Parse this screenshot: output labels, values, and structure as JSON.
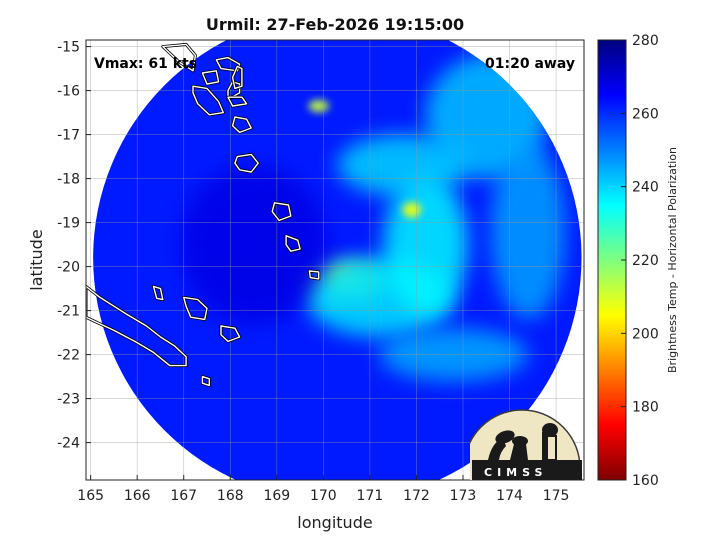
{
  "chart_data": {
    "type": "heatmap",
    "title": "Urmil: 27-Feb-2026 19:15:00",
    "xlabel": "longitude",
    "ylabel": "latitude",
    "xlim": [
      164.9,
      175.6
    ],
    "ylim": [
      -24.85,
      -14.85
    ],
    "xticks": [
      "165",
      "166",
      "167",
      "168",
      "169",
      "170",
      "171",
      "172",
      "173",
      "174",
      "175"
    ],
    "xtick_values": [
      165,
      166,
      167,
      168,
      169,
      170,
      171,
      172,
      173,
      174,
      175
    ],
    "yticks": [
      "-15",
      "-16",
      "-17",
      "-18",
      "-19",
      "-20",
      "-21",
      "-22",
      "-23",
      "-24"
    ],
    "ytick_values": [
      -15,
      -16,
      -17,
      -18,
      -19,
      -20,
      -21,
      -22,
      -23,
      -24
    ],
    "grid": true,
    "annotations": {
      "vmax": "Vmax: 61 kts",
      "away": "01:20 away"
    },
    "colorbar": {
      "label": "Brightness Temp - Horizontal Polarization",
      "range": [
        160,
        280
      ],
      "ticks": [
        "160",
        "180",
        "200",
        "220",
        "240",
        "260",
        "280"
      ],
      "tick_values": [
        160,
        180,
        200,
        220,
        240,
        260,
        280
      ],
      "colormap": "jet"
    },
    "swath": {
      "center_lon": 170.3,
      "center_lat": -19.8,
      "radius_deg": 5.55,
      "background_temp": 262
    },
    "features": [
      {
        "name": "storm-core",
        "lon": 170.35,
        "lat": -20.3,
        "rx": 0.35,
        "ry": 0.22,
        "temp": 172
      },
      {
        "name": "core-ring",
        "lon": 170.5,
        "lat": -20.35,
        "rx": 0.9,
        "ry": 0.45,
        "temp": 218
      },
      {
        "name": "inner-band",
        "lon": 171.2,
        "lat": -20.7,
        "rx": 1.6,
        "ry": 0.9,
        "temp": 238
      },
      {
        "name": "east-band",
        "lon": 172.2,
        "lat": -19.5,
        "rx": 0.9,
        "ry": 1.6,
        "temp": 236
      },
      {
        "name": "band-spot",
        "lon": 171.9,
        "lat": -18.7,
        "rx": 0.2,
        "ry": 0.18,
        "temp": 205
      },
      {
        "name": "north-band",
        "lon": 171.7,
        "lat": -17.7,
        "rx": 1.4,
        "ry": 0.7,
        "temp": 240
      },
      {
        "name": "ne-band",
        "lon": 173.5,
        "lat": -16.6,
        "rx": 1.3,
        "ry": 1.4,
        "temp": 242
      },
      {
        "name": "north-spot",
        "lon": 169.9,
        "lat": -16.35,
        "rx": 0.22,
        "ry": 0.14,
        "temp": 212
      },
      {
        "name": "south-band",
        "lon": 172.8,
        "lat": -22.0,
        "rx": 1.6,
        "ry": 0.6,
        "temp": 245
      },
      {
        "name": "east-edge",
        "lon": 174.4,
        "lat": -19.2,
        "rx": 0.8,
        "ry": 2.0,
        "temp": 246
      },
      {
        "name": "west-cool",
        "lon": 168.5,
        "lat": -19.5,
        "rx": 1.6,
        "ry": 1.8,
        "temp": 268
      }
    ],
    "coastlines": [
      {
        "name": "island-espiritu-santo",
        "points": [
          [
            166.55,
            -15.0
          ],
          [
            166.7,
            -15.15
          ],
          [
            166.9,
            -15.35
          ],
          [
            167.2,
            -15.55
          ],
          [
            167.25,
            -15.2
          ],
          [
            167.05,
            -14.95
          ]
        ]
      },
      {
        "name": "island-malo",
        "points": [
          [
            167.4,
            -15.6
          ],
          [
            167.7,
            -15.55
          ],
          [
            167.75,
            -15.8
          ],
          [
            167.5,
            -15.85
          ]
        ]
      },
      {
        "name": "island-ambae",
        "points": [
          [
            167.7,
            -15.3
          ],
          [
            167.95,
            -15.25
          ],
          [
            168.2,
            -15.4
          ],
          [
            168.15,
            -15.55
          ],
          [
            167.8,
            -15.5
          ]
        ]
      },
      {
        "name": "island-maewo",
        "points": [
          [
            168.05,
            -15.8
          ],
          [
            168.2,
            -15.85
          ],
          [
            168.2,
            -16.05
          ],
          [
            167.95,
            -16.2
          ],
          [
            167.95,
            -16.0
          ]
        ]
      },
      {
        "name": "island-malekula",
        "points": [
          [
            167.2,
            -15.9
          ],
          [
            167.5,
            -15.95
          ],
          [
            167.75,
            -16.25
          ],
          [
            167.85,
            -16.5
          ],
          [
            167.55,
            -16.55
          ],
          [
            167.3,
            -16.3
          ],
          [
            167.2,
            -16.05
          ]
        ]
      },
      {
        "name": "island-pentecost",
        "points": [
          [
            168.15,
            -15.45
          ],
          [
            168.25,
            -15.5
          ],
          [
            168.25,
            -15.9
          ],
          [
            168.1,
            -15.95
          ],
          [
            168.05,
            -15.7
          ]
        ]
      },
      {
        "name": "island-ambrym",
        "points": [
          [
            167.95,
            -16.15
          ],
          [
            168.25,
            -16.15
          ],
          [
            168.35,
            -16.3
          ],
          [
            168.05,
            -16.35
          ]
        ]
      },
      {
        "name": "island-epi",
        "points": [
          [
            168.1,
            -16.6
          ],
          [
            168.35,
            -16.65
          ],
          [
            168.45,
            -16.85
          ],
          [
            168.2,
            -16.95
          ],
          [
            168.05,
            -16.8
          ]
        ]
      },
      {
        "name": "island-efate",
        "points": [
          [
            168.15,
            -17.5
          ],
          [
            168.45,
            -17.45
          ],
          [
            168.6,
            -17.65
          ],
          [
            168.45,
            -17.85
          ],
          [
            168.2,
            -17.8
          ],
          [
            168.1,
            -17.65
          ]
        ]
      },
      {
        "name": "island-erromango",
        "points": [
          [
            168.95,
            -18.55
          ],
          [
            169.25,
            -18.6
          ],
          [
            169.3,
            -18.85
          ],
          [
            169.05,
            -18.95
          ],
          [
            168.9,
            -18.75
          ]
        ]
      },
      {
        "name": "island-tanna",
        "points": [
          [
            169.2,
            -19.3
          ],
          [
            169.45,
            -19.4
          ],
          [
            169.5,
            -19.6
          ],
          [
            169.3,
            -19.65
          ],
          [
            169.2,
            -19.5
          ]
        ]
      },
      {
        "name": "island-aneityum",
        "points": [
          [
            169.7,
            -20.1
          ],
          [
            169.9,
            -20.12
          ],
          [
            169.9,
            -20.28
          ],
          [
            169.72,
            -20.25
          ]
        ]
      },
      {
        "name": "island-ouvea",
        "points": [
          [
            166.35,
            -20.45
          ],
          [
            166.5,
            -20.5
          ],
          [
            166.55,
            -20.75
          ],
          [
            166.42,
            -20.72
          ]
        ]
      },
      {
        "name": "island-lifou",
        "points": [
          [
            167.0,
            -20.7
          ],
          [
            167.3,
            -20.75
          ],
          [
            167.5,
            -20.95
          ],
          [
            167.45,
            -21.2
          ],
          [
            167.15,
            -21.15
          ],
          [
            167.05,
            -20.9
          ]
        ]
      },
      {
        "name": "island-mare",
        "points": [
          [
            167.8,
            -21.35
          ],
          [
            168.1,
            -21.4
          ],
          [
            168.2,
            -21.6
          ],
          [
            167.95,
            -21.7
          ],
          [
            167.8,
            -21.55
          ]
        ]
      },
      {
        "name": "island-isle-of-pines",
        "points": [
          [
            167.4,
            -22.5
          ],
          [
            167.55,
            -22.55
          ],
          [
            167.55,
            -22.7
          ],
          [
            167.4,
            -22.65
          ]
        ]
      },
      {
        "name": "island-new-caledonia",
        "points": [
          [
            164.9,
            -20.45
          ],
          [
            165.2,
            -20.7
          ],
          [
            165.5,
            -20.9
          ],
          [
            165.8,
            -21.1
          ],
          [
            166.2,
            -21.35
          ],
          [
            166.5,
            -21.6
          ],
          [
            166.8,
            -21.8
          ],
          [
            167.05,
            -22.05
          ],
          [
            167.05,
            -22.25
          ],
          [
            166.7,
            -22.25
          ],
          [
            166.35,
            -21.95
          ],
          [
            165.95,
            -21.7
          ],
          [
            165.5,
            -21.45
          ],
          [
            165.1,
            -21.25
          ],
          [
            164.9,
            -21.15
          ]
        ]
      }
    ]
  },
  "logo": {
    "text": "CIMSS"
  }
}
